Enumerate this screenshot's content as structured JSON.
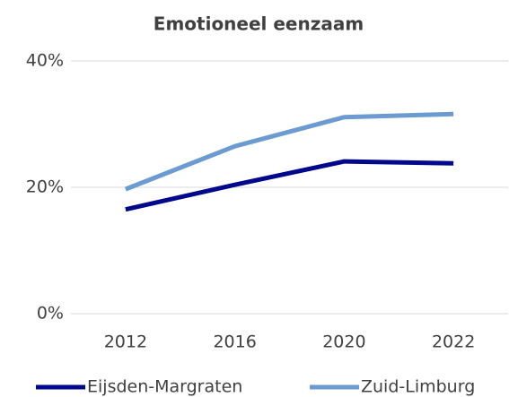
{
  "chart_data": {
    "type": "line",
    "title": "Emotioneel eenzaam",
    "categories": [
      "2012",
      "2016",
      "2020",
      "2022"
    ],
    "series": [
      {
        "name": "Eijsden-Margraten",
        "color": "#00088c",
        "values": [
          16.5,
          20.4,
          24.1,
          23.8
        ]
      },
      {
        "name": "Zuid-Limburg",
        "color": "#6b9bd1",
        "values": [
          19.7,
          26.5,
          31.1,
          31.6
        ]
      }
    ],
    "ylim": [
      0,
      40
    ],
    "yticks": [
      {
        "value": 0,
        "label": "0%"
      },
      {
        "value": 20,
        "label": "20%"
      },
      {
        "value": 40,
        "label": "40%"
      }
    ],
    "grid": true,
    "legend": "bottom"
  }
}
